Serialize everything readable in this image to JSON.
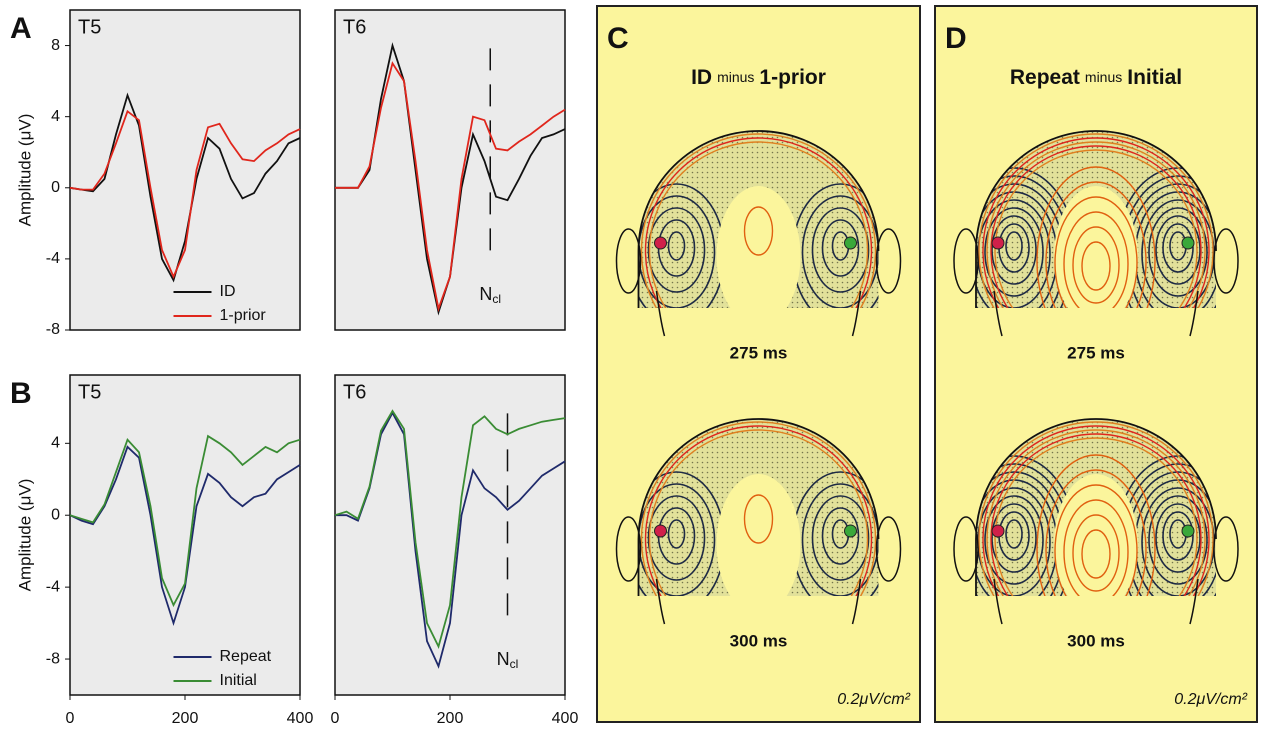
{
  "chart_data": [
    {
      "type": "line",
      "panel": "A",
      "title": "T5",
      "y_label": "Amplitude (μV)",
      "x": [
        0,
        20,
        40,
        60,
        80,
        100,
        120,
        140,
        160,
        180,
        200,
        220,
        240,
        260,
        280,
        300,
        320,
        340,
        360,
        380,
        400
      ],
      "xlim": [
        0,
        400
      ],
      "ylim": [
        -8,
        10
      ],
      "yticks": [
        -8,
        -4,
        0,
        4,
        8
      ],
      "legend": "lower right",
      "series": [
        {
          "name": "ID",
          "color": "#111111",
          "values": [
            0,
            -0.1,
            -0.2,
            0.5,
            3,
            5.2,
            3.5,
            -0.5,
            -4,
            -5.2,
            -3,
            0.5,
            2.8,
            2.2,
            0.5,
            -0.6,
            -0.3,
            0.8,
            1.5,
            2.5,
            2.8
          ]
        },
        {
          "name": "1-prior",
          "color": "#e0261c",
          "values": [
            0,
            -0.1,
            -0.1,
            0.8,
            2.5,
            4.3,
            3.8,
            0,
            -3.5,
            -5,
            -3.5,
            1,
            3.4,
            3.6,
            2.5,
            1.6,
            1.5,
            2.1,
            2.5,
            3,
            3.3
          ]
        }
      ]
    },
    {
      "type": "line",
      "title": "T6",
      "x": [
        0,
        20,
        40,
        60,
        80,
        100,
        120,
        140,
        160,
        180,
        200,
        220,
        240,
        260,
        280,
        300,
        320,
        340,
        360,
        380,
        400
      ],
      "xlim": [
        0,
        400
      ],
      "ylim": [
        -8,
        10
      ],
      "annotation": {
        "x": 270,
        "label": "N",
        "label_sub": "cl"
      },
      "series": [
        {
          "color": "#111111",
          "values": [
            0,
            0,
            0,
            1,
            5,
            8,
            6,
            1,
            -4,
            -7,
            -5,
            0,
            3,
            1.5,
            -0.5,
            -0.7,
            0.5,
            1.8,
            2.8,
            3,
            3.3
          ]
        },
        {
          "color": "#e0261c",
          "values": [
            0,
            0,
            0,
            1.2,
            4.5,
            7,
            6,
            1.5,
            -3.5,
            -6.8,
            -5,
            0.5,
            4,
            3.8,
            2.2,
            2.1,
            2.6,
            3,
            3.5,
            4,
            4.4
          ]
        }
      ]
    },
    {
      "type": "line",
      "panel": "B",
      "title": "T5",
      "y_label": "Amplitude (μV)",
      "x": [
        0,
        20,
        40,
        60,
        80,
        100,
        120,
        140,
        160,
        180,
        200,
        220,
        240,
        260,
        280,
        300,
        320,
        340,
        360,
        380,
        400
      ],
      "xlim": [
        0,
        400
      ],
      "ylim": [
        -10,
        7.8
      ],
      "yticks": [
        -8,
        -4,
        0,
        4
      ],
      "xticks": [
        0,
        200,
        400
      ],
      "legend": "lower right",
      "series": [
        {
          "name": "Repeat",
          "color": "#1f2a6b",
          "values": [
            0,
            -0.3,
            -0.5,
            0.5,
            2,
            3.8,
            3.2,
            0,
            -4,
            -6,
            -4,
            0.5,
            2.3,
            1.8,
            1,
            0.5,
            1,
            1.2,
            2,
            2.4,
            2.8
          ]
        },
        {
          "name": "Initial",
          "color": "#3a8c34",
          "values": [
            0,
            -0.2,
            -0.4,
            0.6,
            2.4,
            4.2,
            3.5,
            0.5,
            -3.5,
            -5,
            -3.8,
            1.5,
            4.4,
            4,
            3.5,
            2.8,
            3.3,
            3.8,
            3.5,
            4,
            4.2
          ]
        }
      ]
    },
    {
      "type": "line",
      "title": "T6",
      "x": [
        0,
        20,
        40,
        60,
        80,
        100,
        120,
        140,
        160,
        180,
        200,
        220,
        240,
        260,
        280,
        300,
        320,
        340,
        360,
        380,
        400
      ],
      "xlim": [
        0,
        400
      ],
      "ylim": [
        -10,
        7.8
      ],
      "xticks": [
        0,
        200,
        400
      ],
      "annotation": {
        "x": 300,
        "label": "N",
        "label_sub": "cl"
      },
      "series": [
        {
          "color": "#1f2a6b",
          "values": [
            0,
            0,
            -0.3,
            1.5,
            4.5,
            5.7,
            4.5,
            -2,
            -7,
            -8.4,
            -6,
            0,
            2.5,
            1.5,
            1,
            0.3,
            0.8,
            1.5,
            2.2,
            2.6,
            3
          ]
        },
        {
          "color": "#3a8c34",
          "values": [
            0,
            0.2,
            -0.2,
            1.6,
            4.7,
            5.8,
            4.8,
            -1.5,
            -6,
            -7.3,
            -5,
            1,
            5,
            5.5,
            4.8,
            4.5,
            4.8,
            5,
            5.2,
            5.3,
            5.4
          ]
        }
      ]
    },
    {
      "type": "topomap",
      "panel": "C",
      "title_parts": [
        "ID",
        "minus",
        "1-prior"
      ],
      "background": "#fbf59c",
      "maps": [
        {
          "label": "275 ms"
        },
        {
          "label": "300 ms"
        }
      ],
      "scale_label": "0.2μV/cm²"
    },
    {
      "type": "topomap",
      "panel": "D",
      "title_parts": [
        "Repeat",
        "minus",
        "Initial"
      ],
      "background": "#fbf59c",
      "maps": [
        {
          "label": "275 ms"
        },
        {
          "label": "300 ms"
        }
      ],
      "scale_label": "0.2μV/cm²"
    }
  ]
}
